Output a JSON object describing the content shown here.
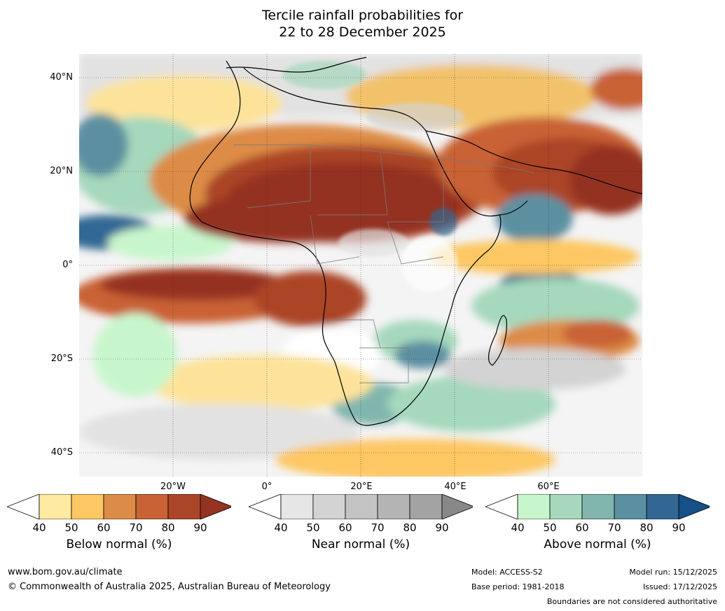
{
  "title_line1": "Tercile rainfall probabilities for",
  "title_line2": "22 to 28 December 2025",
  "lat_labels": [
    "40°N",
    "20°N",
    "0°",
    "20°S",
    "40°S"
  ],
  "lon_labels": [
    "20°W",
    "0°",
    "20°E",
    "40°E",
    "60°E"
  ],
  "legend": {
    "below": {
      "label": "Below normal (%)",
      "ticks": [
        "40",
        "50",
        "60",
        "70",
        "80",
        "90"
      ],
      "colors": [
        "#ffffff",
        "#feeaa1",
        "#fdc764",
        "#dd8c47",
        "#c96234",
        "#ab4527",
        "#943321"
      ]
    },
    "near": {
      "label": "Near normal (%)",
      "ticks": [
        "40",
        "50",
        "60",
        "70",
        "80",
        "90"
      ],
      "colors": [
        "#ffffff",
        "#e6e6e6",
        "#d3d3d3",
        "#c3c3c3",
        "#b4b4b4",
        "#a3a3a3",
        "#888888"
      ]
    },
    "above": {
      "label": "Above normal (%)",
      "ticks": [
        "40",
        "50",
        "60",
        "70",
        "80",
        "90"
      ],
      "colors": [
        "#ffffff",
        "#c8f6cc",
        "#a5d8bc",
        "#81b6ae",
        "#5b90a1",
        "#326794",
        "#174f87"
      ]
    }
  },
  "footer": {
    "website": "www.bom.gov.au/climate",
    "copyright": "© Commonwealth of Australia 2025, Australian Bureau of Meteorology",
    "model": "Model: ACCESS-S2",
    "base_period": "Base period: 1981-2018",
    "model_run": "Model run: 15/12/2025",
    "issued": "Issued: 17/12/2025",
    "disclaimer": "Boundaries are not considered authoritative"
  }
}
